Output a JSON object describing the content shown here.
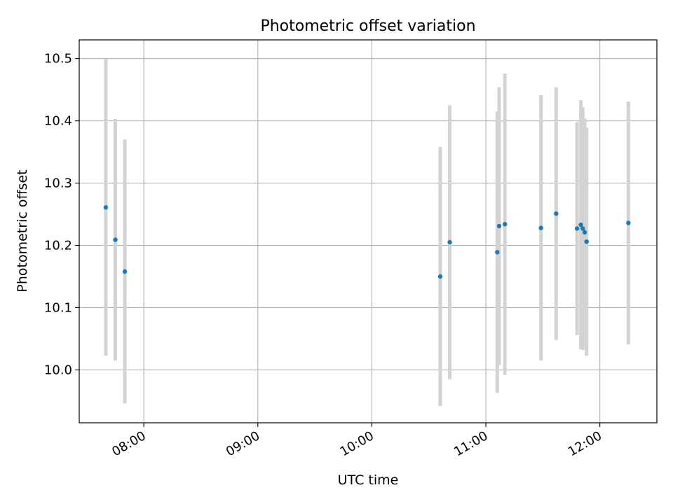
{
  "chart_data": {
    "type": "scatter",
    "title": "Photometric offset variation",
    "xlabel": "UTC time",
    "ylabel": "Photometric offset",
    "xlim": [
      "07:26",
      "12:30"
    ],
    "ylim": [
      9.915,
      10.53
    ],
    "x_ticks": [
      "08:00",
      "09:00",
      "10:00",
      "11:00",
      "12:00"
    ],
    "y_ticks": [
      "10.0",
      "10.1",
      "10.2",
      "10.3",
      "10.4",
      "10.5"
    ],
    "grid": true,
    "points": [
      {
        "t": "07:40",
        "y": 10.261,
        "err": 0.238
      },
      {
        "t": "07:45",
        "y": 10.209,
        "err": 0.194
      },
      {
        "t": "07:50",
        "y": 10.158,
        "err": 0.212
      },
      {
        "t": "10:36",
        "y": 10.15,
        "err": 0.208
      },
      {
        "t": "10:41",
        "y": 10.205,
        "err": 0.22
      },
      {
        "t": "11:06",
        "y": 10.189,
        "err": 0.226
      },
      {
        "t": "11:07",
        "y": 10.231,
        "err": 0.223
      },
      {
        "t": "11:10",
        "y": 10.234,
        "err": 0.242
      },
      {
        "t": "11:29",
        "y": 10.228,
        "err": 0.213
      },
      {
        "t": "11:37",
        "y": 10.251,
        "err": 0.203
      },
      {
        "t": "11:48",
        "y": 10.227,
        "err": 0.171
      },
      {
        "t": "11:50",
        "y": 10.233,
        "err": 0.2
      },
      {
        "t": "11:51",
        "y": 10.227,
        "err": 0.195
      },
      {
        "t": "11:52",
        "y": 10.221,
        "err": 0.183
      },
      {
        "t": "11:53",
        "y": 10.206,
        "err": 0.183
      },
      {
        "t": "12:15",
        "y": 10.236,
        "err": 0.195
      }
    ],
    "colors": {
      "point": "#1f77b4",
      "errorbar": "#d3d3d3",
      "grid": "#b0b0b0",
      "axes": "#000000"
    }
  }
}
